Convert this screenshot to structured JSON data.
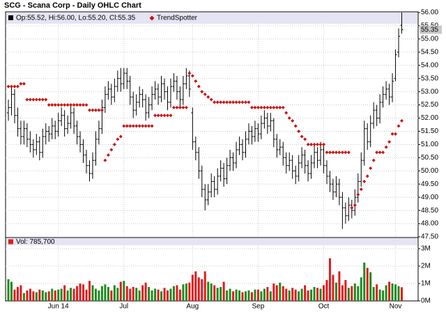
{
  "chart_data": {
    "type": "ohlc",
    "title": "SCG - Scana Corp - Daily OHLC Chart",
    "legend_text": "Op:55.52, Hi:56.00, Lo:55.20, Cl:55.35",
    "bar_color": "#000000",
    "grid": true,
    "categories": [
      null,
      null,
      null,
      null,
      null,
      null,
      null,
      null,
      null,
      null,
      null,
      null,
      null,
      null,
      null,
      null,
      "Jun 14",
      null,
      null,
      null,
      null,
      null,
      null,
      null,
      null,
      null,
      null,
      null,
      null,
      null,
      null,
      null,
      null,
      null,
      null,
      null,
      null,
      "Jul",
      null,
      null,
      null,
      null,
      null,
      null,
      null,
      null,
      null,
      null,
      null,
      null,
      null,
      null,
      null,
      null,
      null,
      null,
      null,
      null,
      null,
      "Aug",
      null,
      null,
      null,
      null,
      null,
      null,
      null,
      null,
      null,
      null,
      null,
      null,
      null,
      null,
      null,
      null,
      null,
      null,
      null,
      null,
      "Sep",
      null,
      null,
      null,
      null,
      null,
      null,
      null,
      null,
      null,
      null,
      null,
      null,
      null,
      null,
      null,
      null,
      null,
      null,
      null,
      null,
      "Oct",
      null,
      null,
      null,
      null,
      null,
      null,
      null,
      null,
      null,
      null,
      null,
      null,
      null,
      null,
      null,
      null,
      null,
      null,
      null,
      null,
      null,
      null,
      "Nov",
      null,
      null
    ],
    "ohlc": [
      [
        52.2,
        52.7,
        51.9,
        52.4
      ],
      [
        52.4,
        53.2,
        52.1,
        52.9
      ],
      [
        52.9,
        53.1,
        51.8,
        52.1
      ],
      [
        52.1,
        52.4,
        51.3,
        51.6
      ],
      [
        51.6,
        51.9,
        51.0,
        51.3
      ],
      [
        51.3,
        51.9,
        51.0,
        51.6
      ],
      [
        51.6,
        51.8,
        50.9,
        51.2
      ],
      [
        51.2,
        51.5,
        50.7,
        51.0
      ],
      [
        51.0,
        51.2,
        50.5,
        50.8
      ],
      [
        50.8,
        51.4,
        50.6,
        51.1
      ],
      [
        51.1,
        51.3,
        50.4,
        50.7
      ],
      [
        50.7,
        51.6,
        50.5,
        51.3
      ],
      [
        51.3,
        51.8,
        51.0,
        51.5
      ],
      [
        51.5,
        51.7,
        51.1,
        51.4
      ],
      [
        51.4,
        52.0,
        51.2,
        51.7
      ],
      [
        51.7,
        51.9,
        51.2,
        51.5
      ],
      [
        51.5,
        52.2,
        51.3,
        51.9
      ],
      [
        51.9,
        52.4,
        51.7,
        52.1
      ],
      [
        52.1,
        52.3,
        51.3,
        51.6
      ],
      [
        51.6,
        52.1,
        51.4,
        51.8
      ],
      [
        51.8,
        52.5,
        51.6,
        52.2
      ],
      [
        52.2,
        52.4,
        51.4,
        51.7
      ],
      [
        51.7,
        51.9,
        51.0,
        51.3
      ],
      [
        51.3,
        51.5,
        50.7,
        51.0
      ],
      [
        51.0,
        51.2,
        50.3,
        50.6
      ],
      [
        50.6,
        50.8,
        49.9,
        50.2
      ],
      [
        50.2,
        50.4,
        49.6,
        49.9
      ],
      [
        49.9,
        50.7,
        49.7,
        50.4
      ],
      [
        50.4,
        51.5,
        50.2,
        51.2
      ],
      [
        51.2,
        51.9,
        51.0,
        51.6
      ],
      [
        51.6,
        52.7,
        51.4,
        52.4
      ],
      [
        52.4,
        53.2,
        52.2,
        52.9
      ],
      [
        52.9,
        53.4,
        52.7,
        53.1
      ],
      [
        53.1,
        53.3,
        52.5,
        52.8
      ],
      [
        52.8,
        53.5,
        52.6,
        53.2
      ],
      [
        53.2,
        53.8,
        53.0,
        53.5
      ],
      [
        53.5,
        53.9,
        53.0,
        53.3
      ],
      [
        53.3,
        53.9,
        53.1,
        53.7
      ],
      [
        53.7,
        53.9,
        53.1,
        53.4
      ],
      [
        53.4,
        53.6,
        52.5,
        52.8
      ],
      [
        52.8,
        53.0,
        52.0,
        52.3
      ],
      [
        52.3,
        52.9,
        52.1,
        52.6
      ],
      [
        52.6,
        53.2,
        52.4,
        52.9
      ],
      [
        52.9,
        53.1,
        52.4,
        52.7
      ],
      [
        52.7,
        52.9,
        51.9,
        52.2
      ],
      [
        52.2,
        52.8,
        52.0,
        52.5
      ],
      [
        52.5,
        53.2,
        52.3,
        52.9
      ],
      [
        52.9,
        53.4,
        52.7,
        53.1
      ],
      [
        53.1,
        53.3,
        52.5,
        52.8
      ],
      [
        52.8,
        53.6,
        52.6,
        53.3
      ],
      [
        53.3,
        53.5,
        52.7,
        53.0
      ],
      [
        53.0,
        53.2,
        52.3,
        52.6
      ],
      [
        52.6,
        53.5,
        52.4,
        53.2
      ],
      [
        53.2,
        53.7,
        53.0,
        53.4
      ],
      [
        53.4,
        53.6,
        52.7,
        53.0
      ],
      [
        53.0,
        53.2,
        52.4,
        52.7
      ],
      [
        52.7,
        53.6,
        52.5,
        53.3
      ],
      [
        53.3,
        53.9,
        53.1,
        53.6
      ],
      [
        53.6,
        53.8,
        52.8,
        53.1
      ],
      [
        52.2,
        52.4,
        50.8,
        51.1
      ],
      [
        51.1,
        51.3,
        50.4,
        50.7
      ],
      [
        50.7,
        50.9,
        49.7,
        50.0
      ],
      [
        50.0,
        50.2,
        49.0,
        49.3
      ],
      [
        49.3,
        49.5,
        48.5,
        48.9
      ],
      [
        48.9,
        49.5,
        48.7,
        49.2
      ],
      [
        49.2,
        49.9,
        49.0,
        49.6
      ],
      [
        49.6,
        49.8,
        49.0,
        49.3
      ],
      [
        49.3,
        50.1,
        49.1,
        49.8
      ],
      [
        49.8,
        50.4,
        49.6,
        50.1
      ],
      [
        50.1,
        50.3,
        49.4,
        49.7
      ],
      [
        49.7,
        50.5,
        49.5,
        50.2
      ],
      [
        50.2,
        50.8,
        50.0,
        50.5
      ],
      [
        50.5,
        50.7,
        50.0,
        50.3
      ],
      [
        50.3,
        51.1,
        50.1,
        50.8
      ],
      [
        50.8,
        51.3,
        50.6,
        51.0
      ],
      [
        51.0,
        51.2,
        50.4,
        50.7
      ],
      [
        50.7,
        51.5,
        50.5,
        51.2
      ],
      [
        51.2,
        51.8,
        51.0,
        51.5
      ],
      [
        51.5,
        51.7,
        51.0,
        51.3
      ],
      [
        51.3,
        51.9,
        51.1,
        51.6
      ],
      [
        51.6,
        51.8,
        51.1,
        51.4
      ],
      [
        51.4,
        52.1,
        51.2,
        51.8
      ],
      [
        51.8,
        52.3,
        51.6,
        52.0
      ],
      [
        52.0,
        52.2,
        51.4,
        51.7
      ],
      [
        51.7,
        52.2,
        51.5,
        51.9
      ],
      [
        51.9,
        52.0,
        50.9,
        51.2
      ],
      [
        51.2,
        51.4,
        50.5,
        50.8
      ],
      [
        50.8,
        51.2,
        50.6,
        50.9
      ],
      [
        50.9,
        51.1,
        50.2,
        50.5
      ],
      [
        50.5,
        50.7,
        49.9,
        50.2
      ],
      [
        50.2,
        50.7,
        50.0,
        50.4
      ],
      [
        50.4,
        50.6,
        49.7,
        50.0
      ],
      [
        50.0,
        50.2,
        49.5,
        49.8
      ],
      [
        49.8,
        50.6,
        49.6,
        50.3
      ],
      [
        50.3,
        50.9,
        50.1,
        50.6
      ],
      [
        50.6,
        50.8,
        49.9,
        50.2
      ],
      [
        50.2,
        50.4,
        49.6,
        49.9
      ],
      [
        49.9,
        50.6,
        49.7,
        50.3
      ],
      [
        50.3,
        51.0,
        50.1,
        50.7
      ],
      [
        50.7,
        50.9,
        50.1,
        50.4
      ],
      [
        50.4,
        51.1,
        50.2,
        50.8
      ],
      [
        50.8,
        51.0,
        49.9,
        50.2
      ],
      [
        50.2,
        50.4,
        49.5,
        49.8
      ],
      [
        49.8,
        50.0,
        49.2,
        49.5
      ],
      [
        49.5,
        49.7,
        48.9,
        49.2
      ],
      [
        49.2,
        49.8,
        49.0,
        49.5
      ],
      [
        49.5,
        49.7,
        48.7,
        49.0
      ],
      [
        49.0,
        49.2,
        47.8,
        48.6
      ],
      [
        48.6,
        48.8,
        48.0,
        48.3
      ],
      [
        48.3,
        49.0,
        48.1,
        48.7
      ],
      [
        48.7,
        48.9,
        48.2,
        48.5
      ],
      [
        48.5,
        49.3,
        48.3,
        49.0
      ],
      [
        49.0,
        49.9,
        48.8,
        49.6
      ],
      [
        49.6,
        50.7,
        49.4,
        50.4
      ],
      [
        50.4,
        51.9,
        50.2,
        51.6
      ],
      [
        51.6,
        51.8,
        50.8,
        51.1
      ],
      [
        51.1,
        52.1,
        50.9,
        51.8
      ],
      [
        51.8,
        52.6,
        51.6,
        52.3
      ],
      [
        52.3,
        52.5,
        51.7,
        52.0
      ],
      [
        52.0,
        52.9,
        51.8,
        52.6
      ],
      [
        52.6,
        53.2,
        52.4,
        52.9
      ],
      [
        52.9,
        53.4,
        52.7,
        53.1
      ],
      [
        53.1,
        53.3,
        52.5,
        52.8
      ],
      [
        52.8,
        53.7,
        52.6,
        53.4
      ],
      [
        53.5,
        54.6,
        53.4,
        54.4
      ],
      [
        54.5,
        55.4,
        54.3,
        55.1
      ],
      [
        55.52,
        56.0,
        55.2,
        55.35
      ]
    ],
    "trendspotter": {
      "name": "TrendSpotter",
      "color": "#cc1111",
      "values": [
        53.2,
        53.2,
        53.2,
        53.2,
        53.3,
        53.3,
        52.7,
        52.7,
        52.7,
        52.7,
        52.7,
        52.7,
        52.7,
        52.5,
        52.5,
        52.5,
        52.5,
        52.5,
        52.5,
        52.5,
        52.5,
        52.5,
        52.5,
        52.5,
        52.5,
        52.5,
        52.3,
        52.3,
        52.3,
        52.3,
        52.3,
        50.4,
        50.6,
        50.8,
        51.0,
        51.2,
        51.3,
        51.7,
        51.7,
        51.7,
        51.7,
        51.7,
        51.7,
        51.7,
        51.7,
        51.7,
        51.7,
        52.1,
        52.1,
        52.1,
        52.1,
        52.1,
        52.1,
        52.4,
        52.4,
        52.4,
        52.4,
        52.4,
        53.7,
        53.6,
        53.4,
        53.2,
        53.0,
        52.9,
        52.8,
        52.7,
        52.6,
        52.6,
        52.6,
        52.6,
        52.6,
        52.6,
        52.6,
        52.6,
        52.6,
        52.6,
        52.6,
        52.6,
        52.4,
        52.4,
        52.4,
        52.4,
        52.4,
        52.4,
        52.4,
        52.4,
        52.4,
        52.4,
        52.4,
        52.2,
        52.0,
        51.9,
        51.7,
        51.5,
        51.3,
        51.2,
        51.0,
        51.0,
        51.0,
        51.0,
        51.0,
        51.0,
        50.7,
        50.7,
        50.7,
        50.7,
        50.7,
        50.7,
        50.7,
        50.7,
        48.6,
        48.7,
        49.1,
        49.3,
        49.6,
        49.8,
        50.1,
        50.4,
        50.7,
        50.7,
        50.7,
        50.9,
        51.1,
        51.4,
        51.4,
        51.7,
        51.9
      ]
    },
    "ylim": [
      47.5,
      56.0
    ],
    "yticks": [
      {
        "value": 47.5,
        "label": "47.50"
      },
      {
        "value": 48.0,
        "label": "48.00"
      },
      {
        "value": 48.5,
        "label": "48.50"
      },
      {
        "value": 49.0,
        "label": "49.00"
      },
      {
        "value": 49.5,
        "label": "49.50"
      },
      {
        "value": 50.0,
        "label": "50.00"
      },
      {
        "value": 50.5,
        "label": "50.50"
      },
      {
        "value": 51.0,
        "label": "51.00"
      },
      {
        "value": 51.5,
        "label": "51.50"
      },
      {
        "value": 52.0,
        "label": "52.00"
      },
      {
        "value": 52.5,
        "label": "52.50"
      },
      {
        "value": 53.0,
        "label": "53.00"
      },
      {
        "value": 53.5,
        "label": "53.50"
      },
      {
        "value": 54.0,
        "label": "54.00"
      },
      {
        "value": 54.5,
        "label": "54.50"
      },
      {
        "value": 55.0,
        "label": "55.00"
      },
      {
        "value": 55.5,
        "label": "55.50"
      },
      {
        "value": 56.0,
        "label": "56.00"
      }
    ],
    "volume": {
      "legend_text": "Vol: 785,700",
      "up_color": "#1f8a1f",
      "down_color": "#e31a1c",
      "ylim": [
        0,
        3200000
      ],
      "yticks": [
        {
          "value": 0,
          "label": "0M"
        },
        {
          "value": 1000000,
          "label": "1M"
        },
        {
          "value": 2000000,
          "label": "2M"
        },
        {
          "value": 3000000,
          "label": "3M"
        }
      ],
      "values": [
        1250000,
        1100000,
        650000,
        800000,
        900000,
        450000,
        600000,
        700000,
        550000,
        500000,
        650000,
        600000,
        500000,
        550000,
        700000,
        600000,
        650000,
        700000,
        900000,
        600000,
        750000,
        700000,
        850000,
        1000000,
        950000,
        650000,
        1150000,
        900000,
        700000,
        600000,
        850000,
        950000,
        800000,
        600000,
        900000,
        750000,
        1100000,
        1150000,
        850000,
        700000,
        800000,
        750000,
        600000,
        900000,
        1050000,
        800000,
        600000,
        700000,
        650000,
        550000,
        750000,
        600000,
        700000,
        850000,
        900000,
        650000,
        950000,
        1000000,
        1050000,
        1500000,
        1700000,
        1350000,
        1250000,
        1700000,
        1100000,
        1000000,
        900000,
        750000,
        800000,
        1100000,
        600000,
        700000,
        550000,
        650000,
        600000,
        500000,
        550000,
        600000,
        500000,
        650000,
        650000,
        550000,
        700000,
        800000,
        550000,
        1000000,
        900000,
        1050000,
        850000,
        700000,
        600000,
        750000,
        650000,
        550000,
        700000,
        900000,
        600000,
        650000,
        800000,
        750000,
        700000,
        900000,
        1200000,
        2450000,
        1500000,
        1050000,
        1700000,
        900000,
        1200000,
        750000,
        850000,
        1000000,
        850000,
        1350000,
        2200000,
        1900000,
        1650000,
        800000,
        950000,
        650000,
        600000,
        900000,
        1100000,
        1000000,
        950000,
        850000,
        785700
      ]
    }
  }
}
